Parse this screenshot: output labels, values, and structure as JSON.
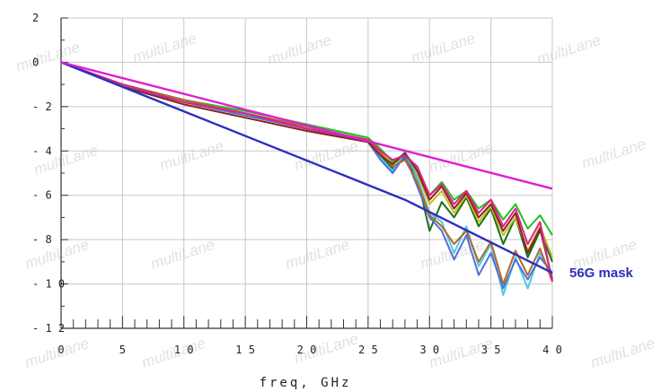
{
  "chart_data": {
    "type": "line",
    "title": "",
    "xlabel": "freq, GHz",
    "ylabel": "",
    "xlim": [
      0,
      40
    ],
    "ylim": [
      -12,
      2
    ],
    "x_ticks": [
      0,
      5,
      10,
      15,
      20,
      25,
      30,
      35,
      40
    ],
    "x_tick_labels": [
      "0",
      "5",
      "1 0",
      "1 5",
      "2 0",
      "2 5",
      "3 0",
      "3 5",
      "4 0"
    ],
    "y_ticks": [
      2,
      0,
      -2,
      -4,
      -6,
      -8,
      -10,
      -12
    ],
    "y_tick_labels": [
      "2",
      "0",
      "- 2",
      "- 4",
      "- 6",
      "- 8",
      "- 1 0",
      "- 1 2"
    ],
    "grid": true,
    "watermark": "multiLane",
    "annotation": {
      "text": "56G mask",
      "color": "#2b2fbf"
    },
    "mask_lines": [
      {
        "color": "#2b2fbf",
        "x": [
          0,
          28,
          40
        ],
        "y": [
          0,
          -6.2,
          -9.5
        ]
      },
      {
        "color": "#e020d0",
        "x": [
          0,
          40
        ],
        "y": [
          0,
          -5.7
        ]
      }
    ],
    "series": [
      {
        "color": "#20c020",
        "x": [
          0,
          5,
          10,
          15,
          20,
          25,
          26,
          27,
          28,
          29,
          30,
          31,
          32,
          33,
          34,
          35,
          36,
          37,
          38,
          39,
          40
        ],
        "y": [
          0,
          -1.0,
          -1.7,
          -2.2,
          -2.8,
          -3.4,
          -3.9,
          -4.5,
          -4.1,
          -4.8,
          -6.0,
          -5.4,
          -6.2,
          -5.8,
          -6.6,
          -6.2,
          -7.1,
          -6.4,
          -7.5,
          -6.9,
          -7.8
        ]
      },
      {
        "color": "#1a6e1a",
        "x": [
          0,
          5,
          10,
          15,
          20,
          25,
          26,
          27,
          28,
          29,
          30,
          31,
          32,
          33,
          34,
          35,
          36,
          37,
          38,
          39,
          40
        ],
        "y": [
          0,
          -1.1,
          -1.8,
          -2.3,
          -3.0,
          -3.6,
          -4.2,
          -4.8,
          -4.3,
          -5.2,
          -7.6,
          -6.3,
          -7.0,
          -6.1,
          -7.4,
          -6.6,
          -8.2,
          -7.0,
          -8.8,
          -7.6,
          -9.0
        ]
      },
      {
        "color": "#c0c020",
        "x": [
          0,
          5,
          10,
          15,
          20,
          25,
          26,
          27,
          28,
          29,
          30,
          31,
          32,
          33,
          34,
          35,
          36,
          37,
          38,
          39,
          40
        ],
        "y": [
          0,
          -1.0,
          -1.8,
          -2.4,
          -3.0,
          -3.5,
          -4.0,
          -4.6,
          -4.2,
          -5.0,
          -6.4,
          -5.8,
          -6.8,
          -6.0,
          -7.2,
          -6.5,
          -7.8,
          -7.0,
          -8.5,
          -7.4,
          -8.8
        ]
      },
      {
        "color": "#50c8e8",
        "x": [
          0,
          5,
          10,
          15,
          20,
          25,
          26,
          27,
          28,
          29,
          30,
          31,
          32,
          33,
          34,
          35,
          36,
          37,
          38,
          39,
          40
        ],
        "y": [
          0,
          -1.0,
          -1.7,
          -2.3,
          -2.9,
          -3.5,
          -4.3,
          -4.9,
          -4.0,
          -5.2,
          -6.8,
          -7.2,
          -8.6,
          -7.4,
          -9.2,
          -8.2,
          -10.5,
          -8.8,
          -10.2,
          -8.6,
          -9.6
        ]
      },
      {
        "color": "#5070d8",
        "x": [
          0,
          5,
          10,
          15,
          20,
          25,
          26,
          27,
          28,
          29,
          30,
          31,
          32,
          33,
          34,
          35,
          36,
          37,
          38,
          39,
          40
        ],
        "y": [
          0,
          -1.1,
          -1.8,
          -2.4,
          -3.0,
          -3.6,
          -4.4,
          -5.0,
          -4.2,
          -5.6,
          -7.0,
          -7.6,
          -8.9,
          -7.8,
          -9.6,
          -8.6,
          -10.2,
          -8.9,
          -9.8,
          -8.8,
          -9.5
        ]
      },
      {
        "color": "#b06a2a",
        "x": [
          0,
          5,
          10,
          15,
          20,
          25,
          26,
          27,
          28,
          29,
          30,
          31,
          32,
          33,
          34,
          35,
          36,
          37,
          38,
          39,
          40
        ],
        "y": [
          0,
          -1.0,
          -1.7,
          -2.3,
          -2.9,
          -3.5,
          -4.1,
          -4.7,
          -4.4,
          -5.4,
          -6.9,
          -7.4,
          -8.2,
          -7.6,
          -9.0,
          -8.1,
          -10.0,
          -8.5,
          -9.6,
          -8.4,
          -9.9
        ]
      },
      {
        "color": "#8a2424",
        "x": [
          0,
          5,
          10,
          15,
          20,
          25,
          26,
          27,
          28,
          29,
          30,
          31,
          32,
          33,
          34,
          35,
          36,
          37,
          38,
          39,
          40
        ],
        "y": [
          0,
          -1.1,
          -1.9,
          -2.5,
          -3.1,
          -3.6,
          -4.2,
          -4.6,
          -4.1,
          -4.9,
          -6.2,
          -5.6,
          -6.6,
          -5.9,
          -7.0,
          -6.4,
          -7.6,
          -6.8,
          -8.6,
          -7.5,
          -9.8
        ]
      },
      {
        "color": "#e0208a",
        "x": [
          0,
          5,
          10,
          15,
          20,
          25,
          26,
          27,
          28,
          29,
          30,
          31,
          32,
          33,
          34,
          35,
          36,
          37,
          38,
          39,
          40
        ],
        "y": [
          0,
          -1.0,
          -1.8,
          -2.3,
          -3.0,
          -3.5,
          -4.0,
          -4.4,
          -4.2,
          -4.7,
          -6.0,
          -5.5,
          -6.4,
          -5.8,
          -6.8,
          -6.2,
          -7.4,
          -6.6,
          -8.2,
          -7.2,
          -9.9
        ]
      }
    ]
  }
}
